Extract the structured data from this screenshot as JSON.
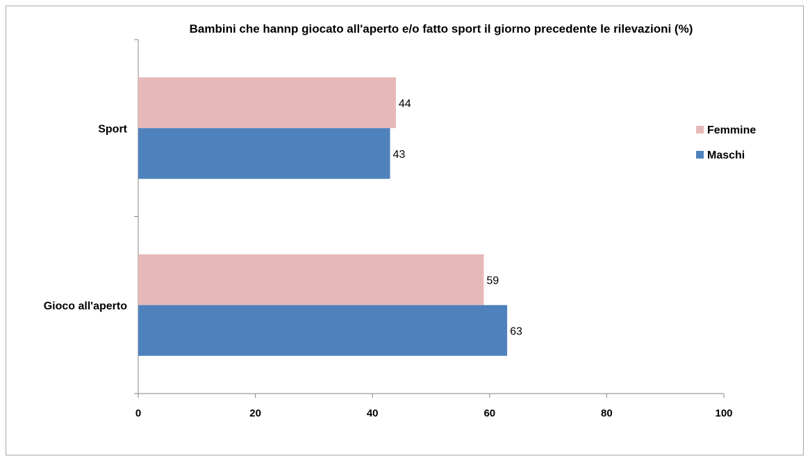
{
  "chart_data": {
    "type": "bar",
    "orientation": "horizontal",
    "title": "Bambini  che hannp giocato all'aperto e/o fatto sport il giorno precedente le rilevazioni (%)",
    "categories": [
      "Gioco all'aperto",
      "Sport"
    ],
    "series": [
      {
        "name": "Maschi",
        "values": [
          63,
          43
        ],
        "color": "#4f81bd"
      },
      {
        "name": "Femmine",
        "values": [
          59,
          44
        ],
        "color": "#e6b9b8"
      }
    ],
    "xlim": [
      0,
      100
    ],
    "xticks": [
      "0",
      "20",
      "40",
      "60",
      "80",
      "100"
    ],
    "grid": false,
    "legend": "right"
  }
}
